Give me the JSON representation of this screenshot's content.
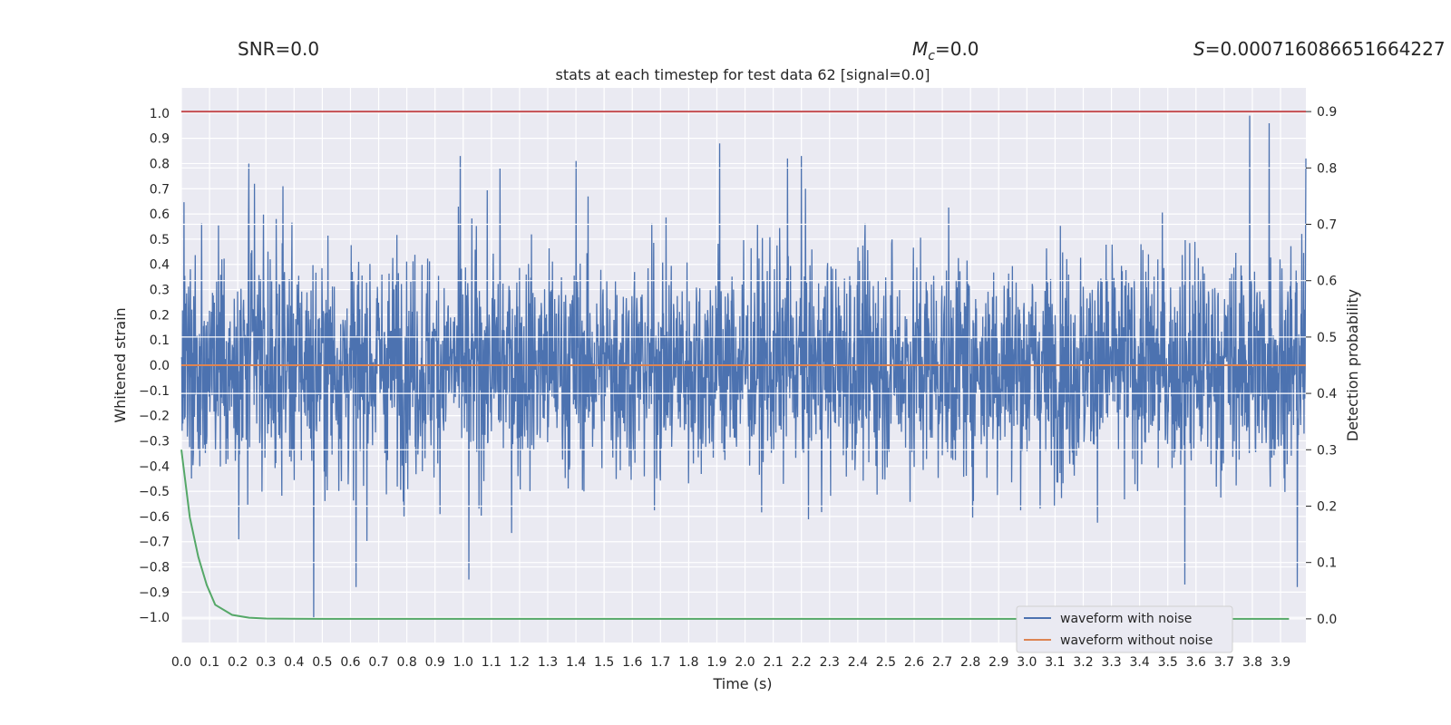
{
  "header": {
    "snr": "SNR=0.0",
    "mc_symbol": "M",
    "mc_sub": "c",
    "mc_value": "=0.0",
    "s_symbol": "S",
    "s_value": "=0.000716086651664227"
  },
  "chart_data": {
    "type": "line",
    "title": "stats at each timestep for test data 62 [signal=0.0]",
    "xlabel": "Time (s)",
    "ylabel": "Whitened strain",
    "y2label": "Detection probability",
    "xlim": [
      0.0,
      3.99
    ],
    "ylim": [
      -1.1,
      1.1
    ],
    "y2lim": [
      -0.042,
      0.942
    ],
    "grid": true,
    "legend_position": "lower-right",
    "x_ticks": [
      "0.0",
      "0.1",
      "0.2",
      "0.3",
      "0.4",
      "0.5",
      "0.6",
      "0.7",
      "0.8",
      "0.9",
      "1.0",
      "1.1",
      "1.2",
      "1.3",
      "1.4",
      "1.5",
      "1.6",
      "1.7",
      "1.8",
      "1.9",
      "2.0",
      "2.1",
      "2.2",
      "2.3",
      "2.4",
      "2.5",
      "2.6",
      "2.7",
      "2.8",
      "2.9",
      "3.0",
      "3.1",
      "3.2",
      "3.3",
      "3.4",
      "3.5",
      "3.6",
      "3.7",
      "3.8",
      "3.9"
    ],
    "y_ticks": [
      "1.0",
      "0.9",
      "0.8",
      "0.7",
      "0.6",
      "0.5",
      "0.4",
      "0.3",
      "0.2",
      "0.1",
      "0.0",
      "−0.1",
      "−0.2",
      "−0.3",
      "−0.4",
      "−0.5",
      "−0.6",
      "−0.7",
      "−0.8",
      "−0.9",
      "−1.0"
    ],
    "y2_ticks": [
      "0.9",
      "0.8",
      "0.7",
      "0.6",
      "0.5",
      "0.4",
      "0.3",
      "0.2",
      "0.1",
      "0.0"
    ],
    "series": [
      {
        "name": "waveform with noise",
        "color": "#4c72b0",
        "axis": "left",
        "noise_std": 0.22,
        "spikes": [
          {
            "x": 0.24,
            "y": 0.8
          },
          {
            "x": 0.26,
            "y": 0.72
          },
          {
            "x": 0.36,
            "y": 0.71
          },
          {
            "x": 0.47,
            "y": -1.0
          },
          {
            "x": 0.62,
            "y": -0.88
          },
          {
            "x": 0.99,
            "y": 0.83
          },
          {
            "x": 1.02,
            "y": -0.85
          },
          {
            "x": 1.13,
            "y": 0.78
          },
          {
            "x": 1.4,
            "y": 0.81
          },
          {
            "x": 1.91,
            "y": 0.88
          },
          {
            "x": 2.15,
            "y": 0.82
          },
          {
            "x": 2.2,
            "y": 0.83
          },
          {
            "x": 3.56,
            "y": -0.87
          },
          {
            "x": 3.79,
            "y": 0.99
          },
          {
            "x": 3.86,
            "y": 0.96
          },
          {
            "x": 3.96,
            "y": -0.88
          },
          {
            "x": 3.99,
            "y": 0.82
          }
        ]
      },
      {
        "name": "waveform without noise",
        "color": "#dd8452",
        "axis": "left",
        "x": [
          0.0,
          3.99
        ],
        "y": [
          0.0,
          0.0
        ]
      },
      {
        "color": "#55a868",
        "axis": "right",
        "x": [
          0.0,
          0.03,
          0.06,
          0.09,
          0.12,
          0.18,
          0.24,
          0.3,
          0.4,
          0.5,
          1.0,
          2.0,
          3.0,
          3.93
        ],
        "y": [
          0.3,
          0.18,
          0.11,
          0.06,
          0.025,
          0.007,
          0.002,
          0.0007,
          0.0002,
          0.0,
          0.0,
          0.0,
          0.0,
          0.0
        ]
      },
      {
        "color": "#c44e52",
        "axis": "right",
        "x": [
          0.0,
          3.99
        ],
        "y": [
          0.9,
          0.9
        ]
      }
    ]
  }
}
